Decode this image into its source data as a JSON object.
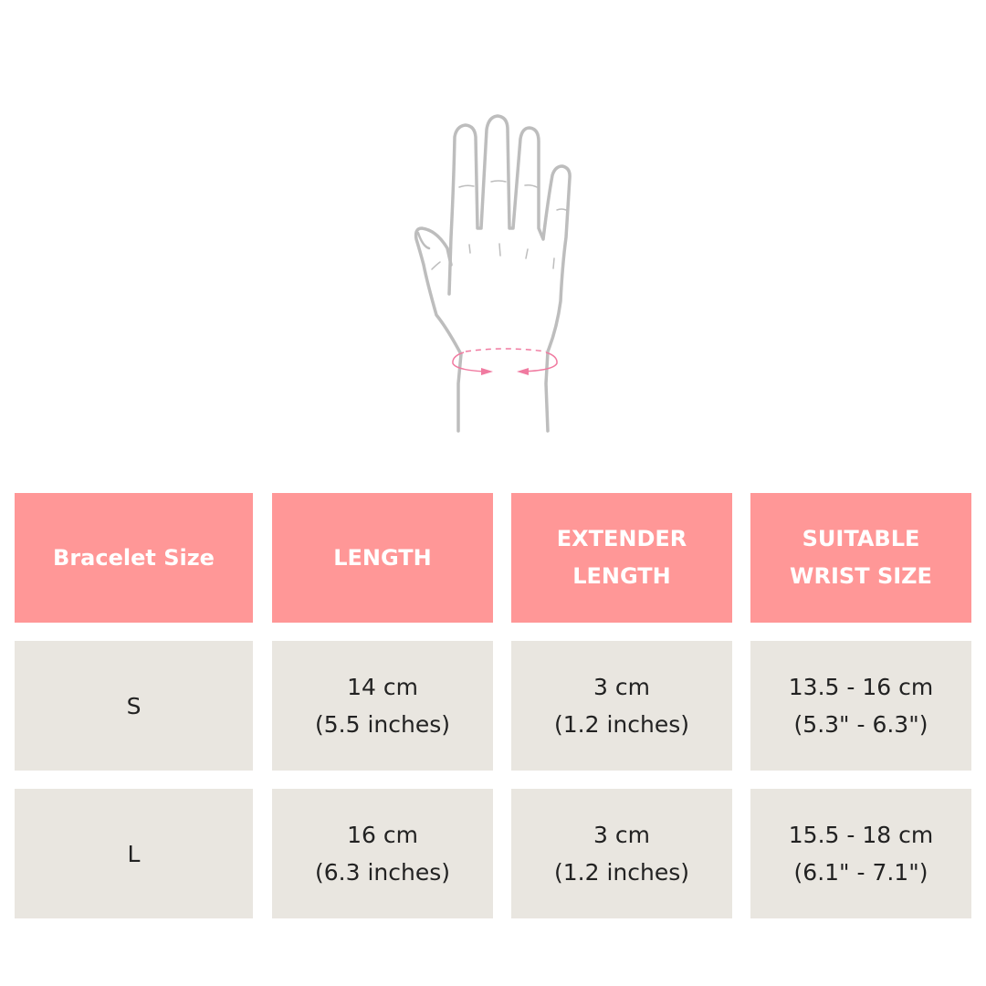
{
  "colors": {
    "header_bg": "#ff9797",
    "cell_bg": "#e9e6e0",
    "measure_line": "#f07aa0",
    "hand_outline": "#bdbdbd"
  },
  "illustration": {
    "icon": "hand-wrist-measurement-icon"
  },
  "table": {
    "headers": [
      [
        "Bracelet Size"
      ],
      [
        "LENGTH"
      ],
      [
        "EXTENDER",
        "LENGTH"
      ],
      [
        "SUITABLE",
        "WRIST SIZE"
      ]
    ],
    "rows": [
      [
        [
          "S"
        ],
        [
          "14 cm",
          "(5.5 inches)"
        ],
        [
          "3 cm",
          "(1.2 inches)"
        ],
        [
          "13.5 - 16 cm",
          "(5.3\" - 6.3\")"
        ]
      ],
      [
        [
          "L"
        ],
        [
          "16 cm",
          "(6.3 inches)"
        ],
        [
          "3 cm",
          "(1.2 inches)"
        ],
        [
          "15.5 - 18 cm",
          "(6.1\" - 7.1\")"
        ]
      ]
    ]
  }
}
